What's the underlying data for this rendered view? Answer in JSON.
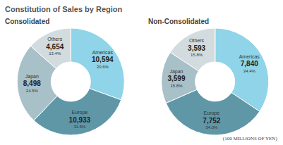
{
  "title": "Constitution of Sales by Region",
  "note": "(100 MILLIONS OF YEN)",
  "chart_data": [
    {
      "type": "pie",
      "title": "Consolidated",
      "categories": [
        "Americas",
        "Europe",
        "Japan",
        "Others"
      ],
      "values": [
        10594,
        10933,
        8498,
        4654
      ],
      "value_labels": [
        "10,594",
        "10,933",
        "8,498",
        "4,654"
      ],
      "percent_labels": [
        "30.6%",
        "31.5%",
        "24.5%",
        "13.4%"
      ],
      "colors": [
        "#8fd4e8",
        "#6097a7",
        "#a8c0c8",
        "#d2dcdf"
      ],
      "data_labels": true
    },
    {
      "type": "pie",
      "title": "Non-Consolidated",
      "categories": [
        "Americas",
        "Europe",
        "Japan",
        "Others"
      ],
      "values": [
        7840,
        7752,
        3599,
        3593
      ],
      "value_labels": [
        "7,840",
        "7,752",
        "3,599",
        "3,593"
      ],
      "percent_labels": [
        "34.4%",
        "34.0%",
        "15.8%",
        "15.8%"
      ],
      "colors": [
        "#8fd4e8",
        "#6097a7",
        "#a8c0c8",
        "#d2dcdf"
      ],
      "data_labels": true
    }
  ]
}
